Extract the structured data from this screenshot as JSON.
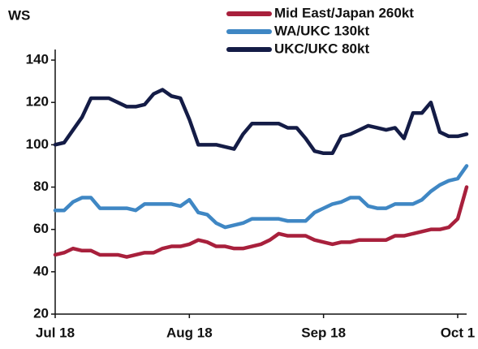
{
  "chart_data": {
    "type": "line",
    "y_label": "WS",
    "categories": [
      "Jul 18",
      null,
      null,
      null,
      null,
      null,
      null,
      null,
      null,
      null,
      null,
      null,
      null,
      null,
      null,
      "Aug 18",
      null,
      null,
      null,
      null,
      null,
      null,
      null,
      null,
      null,
      null,
      null,
      null,
      null,
      null,
      "Sep 18",
      null,
      null,
      null,
      null,
      null,
      null,
      null,
      null,
      null,
      null,
      null,
      null,
      null,
      null,
      "Oct 1",
      null
    ],
    "series": [
      {
        "name": "Mid East/Japan 260kt",
        "color": "#a8203c",
        "values": [
          48,
          49,
          51,
          50,
          50,
          48,
          48,
          48,
          47,
          48,
          49,
          49,
          51,
          52,
          52,
          53,
          55,
          54,
          52,
          52,
          51,
          51,
          52,
          53,
          55,
          58,
          57,
          57,
          57,
          55,
          54,
          53,
          54,
          54,
          55,
          55,
          55,
          55,
          57,
          57,
          58,
          59,
          60,
          60,
          61,
          65,
          80
        ]
      },
      {
        "name": "WA/UKC 130kt",
        "color": "#3f87c4",
        "values": [
          69,
          69,
          73,
          75,
          75,
          70,
          70,
          70,
          70,
          69,
          72,
          72,
          72,
          72,
          71,
          74,
          68,
          67,
          63,
          61,
          62,
          63,
          65,
          65,
          65,
          65,
          64,
          64,
          64,
          68,
          70,
          72,
          73,
          75,
          75,
          71,
          70,
          70,
          72,
          72,
          72,
          74,
          78,
          81,
          83,
          84,
          90
        ]
      },
      {
        "name": "UKC/UKC 80kt",
        "color": "#141c46",
        "values": [
          100,
          101,
          107,
          113,
          122,
          122,
          122,
          120,
          118,
          118,
          119,
          124,
          126,
          123,
          122,
          112,
          100,
          100,
          100,
          99,
          98,
          105,
          110,
          110,
          110,
          110,
          108,
          108,
          103,
          97,
          96,
          96,
          104,
          105,
          107,
          109,
          108,
          107,
          108,
          103,
          115,
          115,
          120,
          106,
          104,
          104,
          105
        ]
      }
    ],
    "ylim": [
      20,
      145
    ],
    "yticks": [
      20,
      40,
      60,
      80,
      100,
      120,
      140
    ]
  }
}
